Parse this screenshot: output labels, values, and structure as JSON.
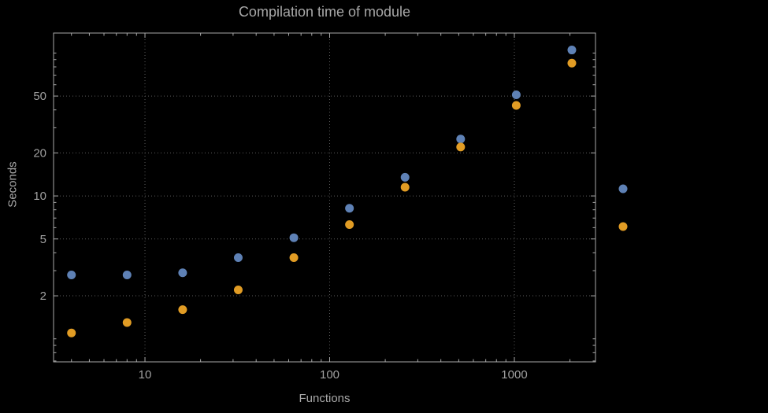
{
  "chart_data": {
    "type": "scatter",
    "title": "Compilation time of module",
    "xlabel": "Functions",
    "ylabel": "Seconds",
    "xscale": "log",
    "yscale": "log",
    "xlim": [
      3.2,
      2750
    ],
    "ylim": [
      0.69,
      138
    ],
    "xticks": [
      10,
      100,
      1000
    ],
    "yticks": [
      2,
      5,
      10,
      20,
      50
    ],
    "grid": {
      "style": "dotted",
      "color": "#5c5c5c"
    },
    "frame_color": "#a8a8a8",
    "text_color": "#a0a0a0",
    "background": "#000000",
    "marker_radius": 5.5,
    "series": [
      {
        "name": "series-blue",
        "color": "#5e81b5",
        "x": [
          4,
          8,
          16,
          32,
          64,
          128,
          256,
          512,
          1024,
          2048
        ],
        "y": [
          2.8,
          2.8,
          2.9,
          3.7,
          5.1,
          8.2,
          13.5,
          25,
          51,
          105
        ]
      },
      {
        "name": "series-orange",
        "color": "#e19c24",
        "x": [
          4,
          8,
          16,
          32,
          64,
          128,
          256,
          512,
          1024,
          2048
        ],
        "y": [
          1.1,
          1.3,
          1.6,
          2.2,
          3.7,
          6.3,
          11.5,
          22,
          43,
          85
        ]
      }
    ],
    "legend": {
      "position": "outside-right",
      "entries": [
        {
          "marker_color": "#5e81b5",
          "label": ""
        },
        {
          "marker_color": "#e19c24",
          "label": ""
        }
      ]
    }
  }
}
